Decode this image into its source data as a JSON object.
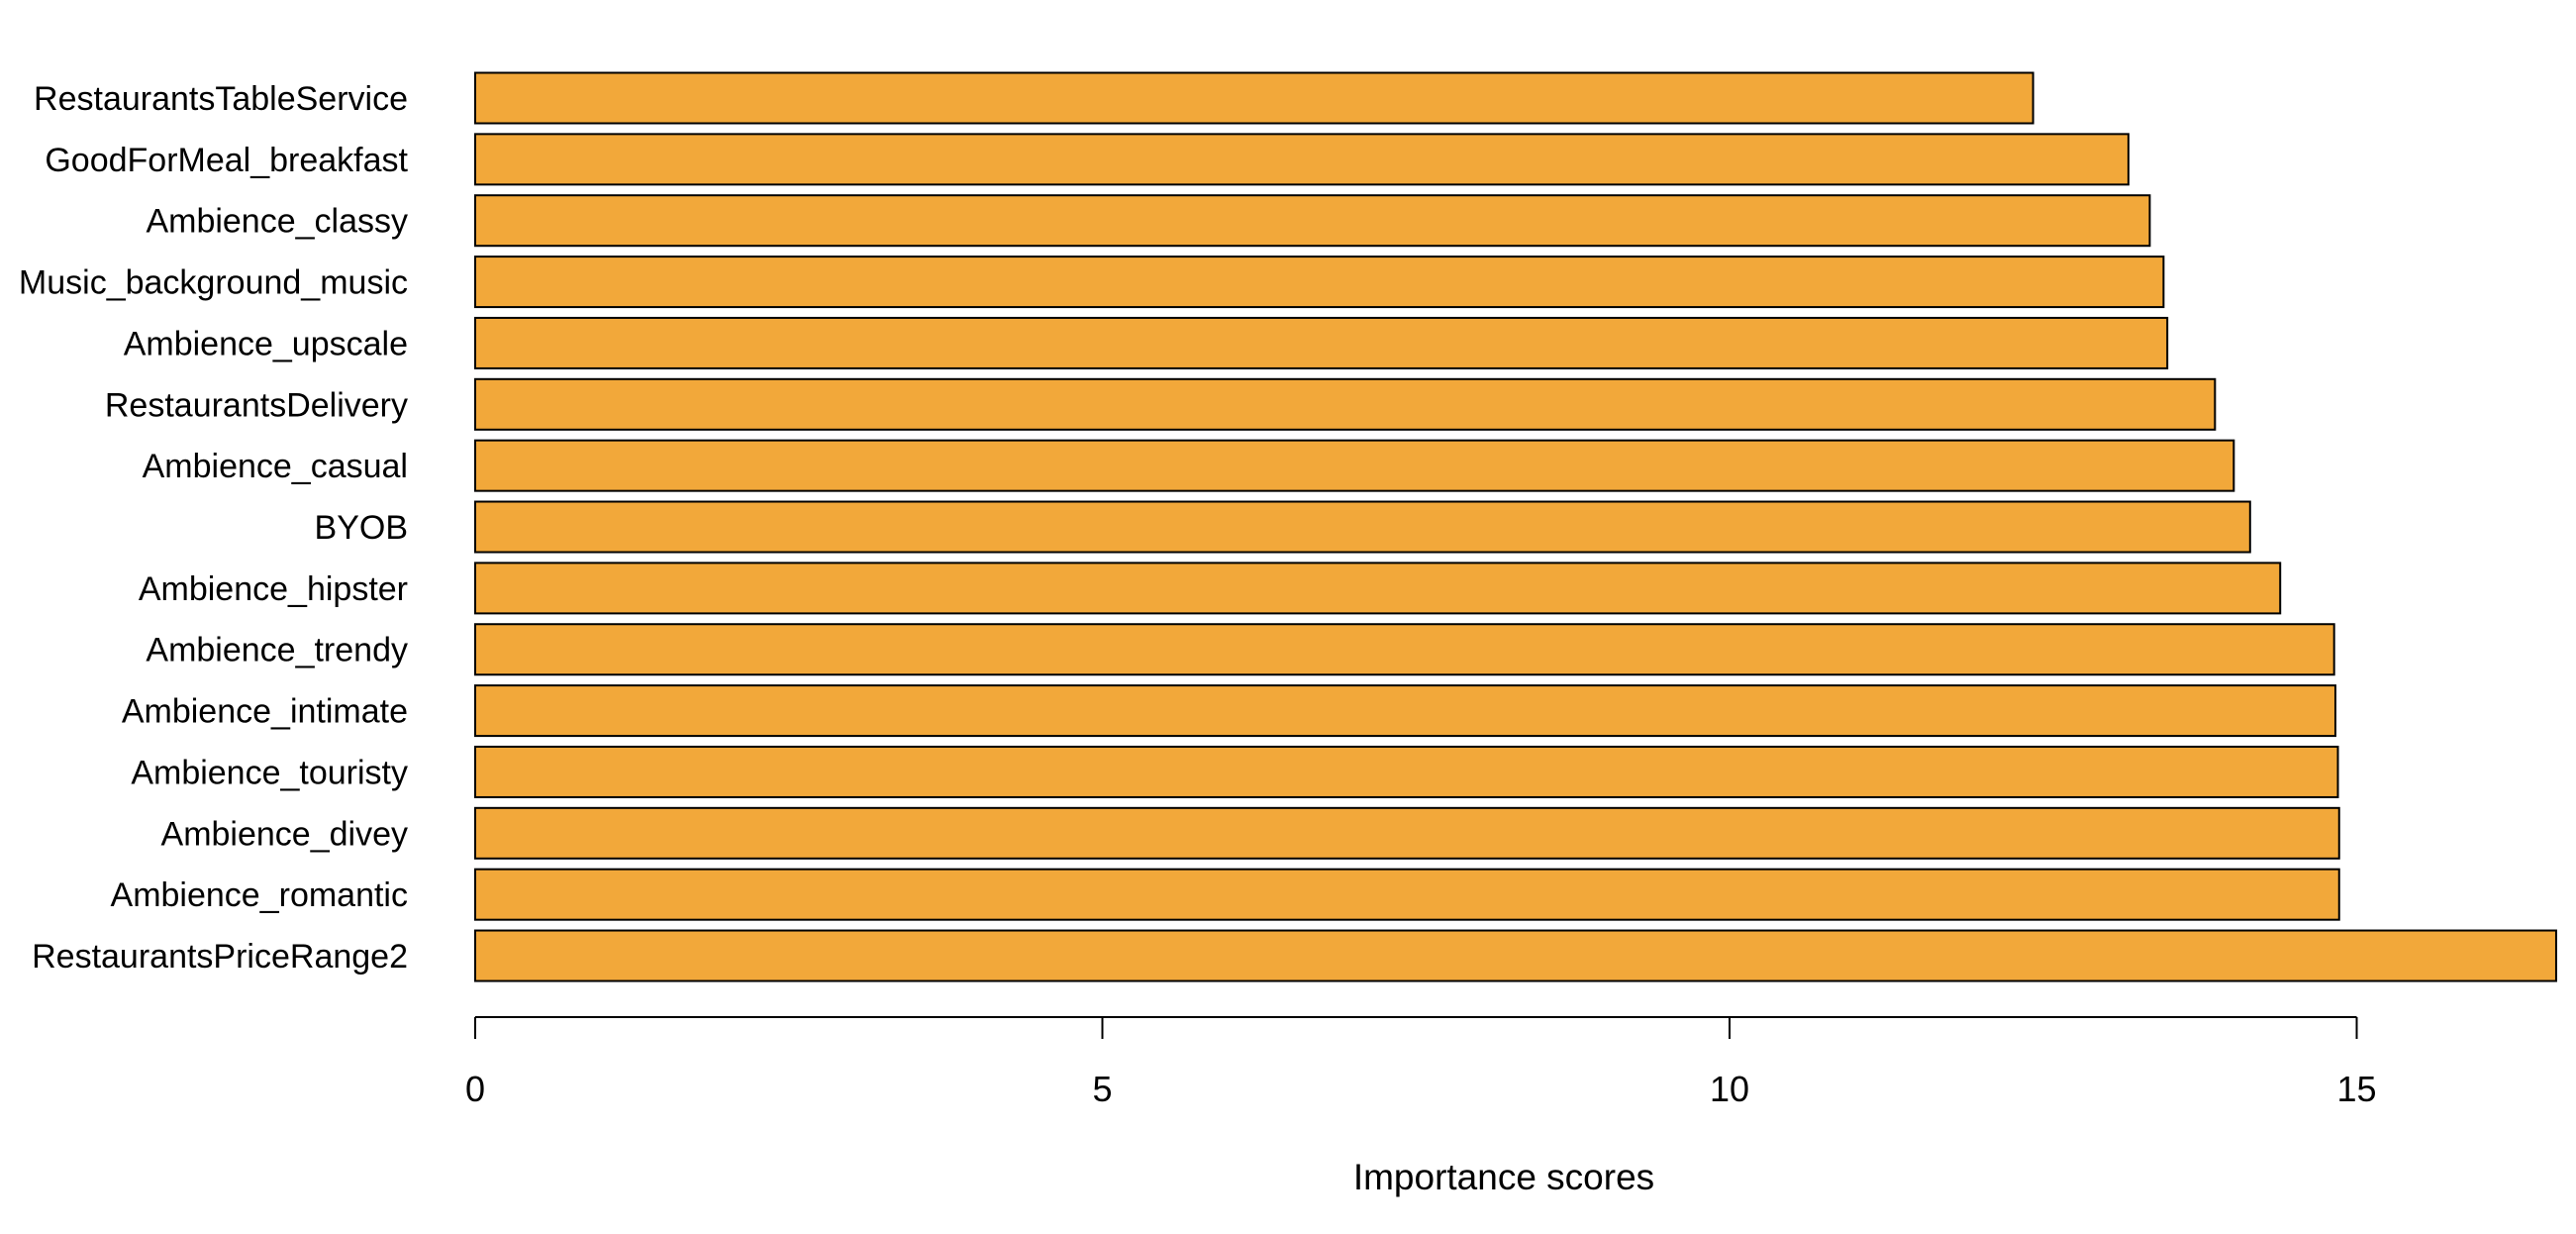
{
  "chart_data": {
    "type": "bar",
    "orientation": "horizontal",
    "categories": [
      "RestaurantsTableService",
      "GoodForMeal_breakfast",
      "Ambience_classy",
      "Music_background_music",
      "Ambience_upscale",
      "RestaurantsDelivery",
      "Ambience_casual",
      "BYOB",
      "Ambience_hipster",
      "Ambience_trendy",
      "Ambience_intimate",
      "Ambience_touristy",
      "Ambience_divey",
      "Ambience_romantic",
      "RestaurantsPriceRange2"
    ],
    "values": [
      12.42,
      13.18,
      13.35,
      13.46,
      13.49,
      13.87,
      14.02,
      14.15,
      14.39,
      14.82,
      14.83,
      14.85,
      14.86,
      14.86,
      16.59
    ],
    "xlabel": "Importance scores",
    "ylabel": "",
    "xlim": [
      0,
      16.59
    ],
    "xticks": [
      0,
      5,
      10,
      15
    ],
    "tick_labels": [
      "0",
      "5",
      "10",
      "15"
    ],
    "grid": false,
    "legend": "none",
    "bar_color": "#f2a83a",
    "bar_edge_color": "#000000"
  }
}
